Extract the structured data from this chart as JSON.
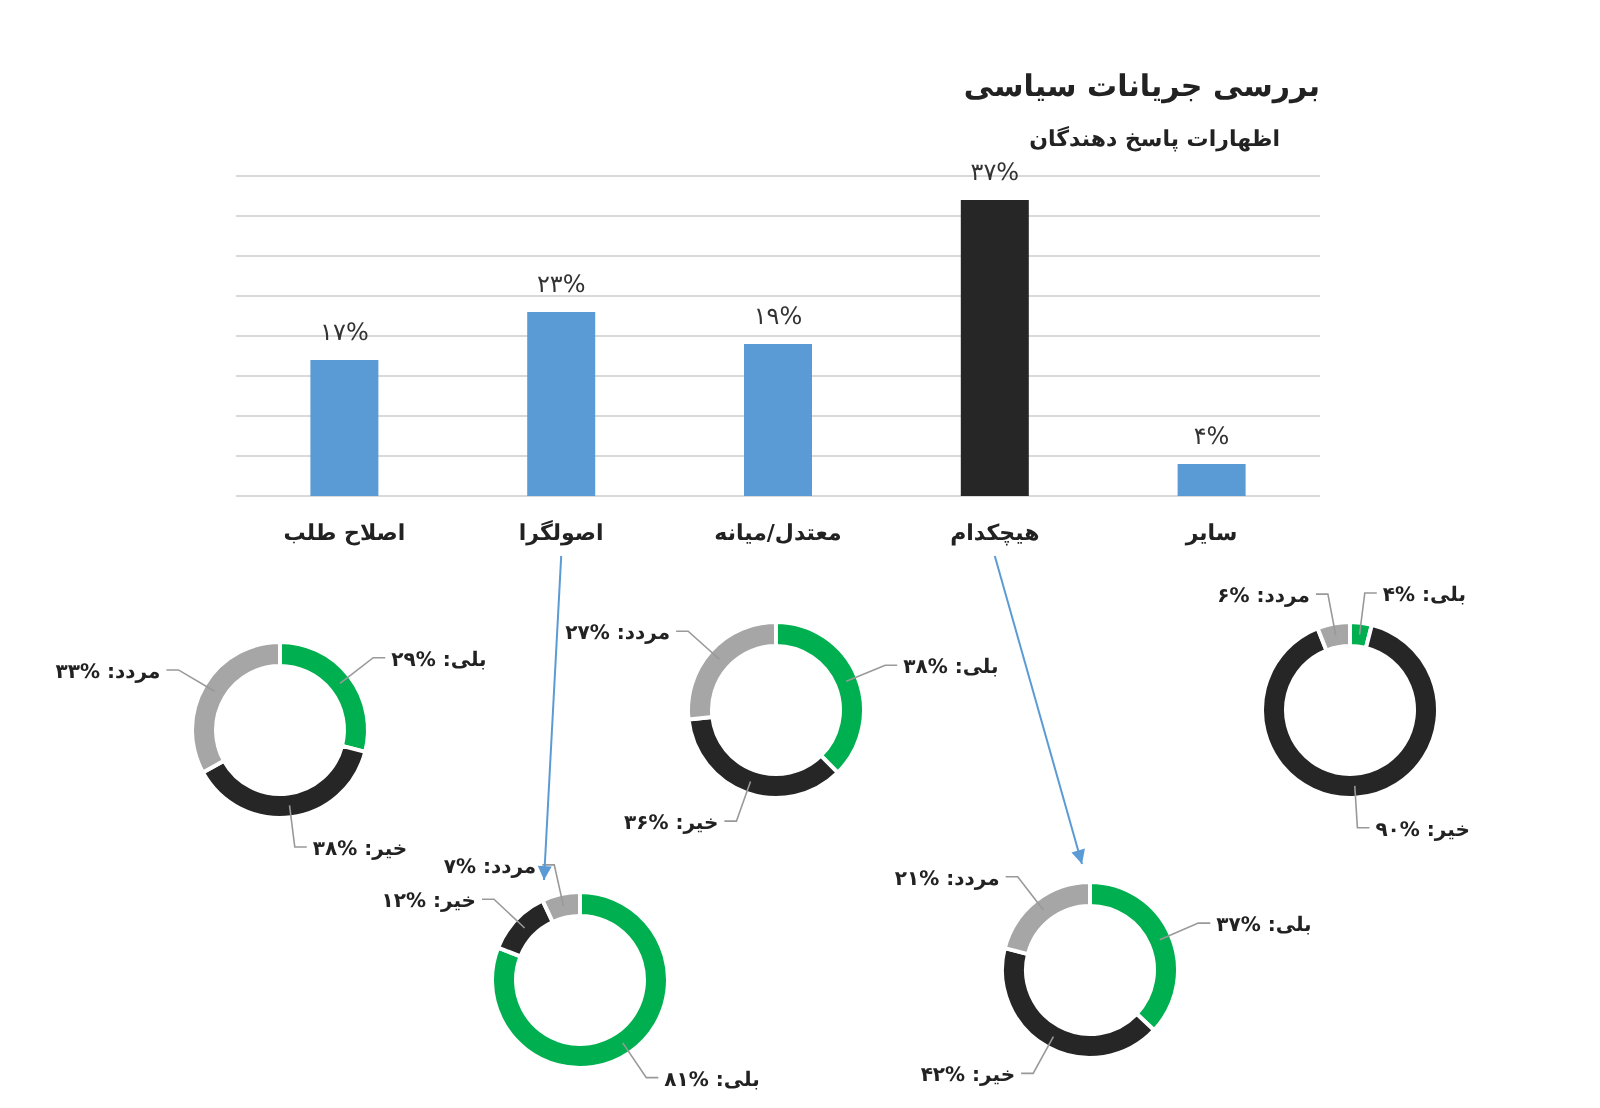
{
  "chart_data": [
    {
      "type": "bar",
      "title": "بررسی جریانات سیاسی",
      "subtitle": "اظهارات پاسخ دهندگان",
      "categories": [
        "اصلاح طلب",
        "اصولگرا",
        "معتدل/میانه",
        "هیچکدام",
        "سایر"
      ],
      "values": [
        17,
        23,
        19,
        37,
        4
      ],
      "colors": [
        "#5b9bd5",
        "#5b9bd5",
        "#5b9bd5",
        "#262626",
        "#5b9bd5"
      ],
      "value_labels": [
        "۱۷%",
        "۲۳%",
        "۱۹%",
        "۳۷%",
        "۴%"
      ],
      "ylim": [
        0,
        40
      ],
      "yticks": [
        {
          "value": 0,
          "label": null
        },
        {
          "value": 5,
          "label": null
        },
        {
          "value": 10,
          "label": null
        },
        {
          "value": 15,
          "label": null
        },
        {
          "value": 20,
          "label": null
        },
        {
          "value": 25,
          "label": null
        },
        {
          "value": 30,
          "label": null
        },
        {
          "value": 35,
          "label": null
        },
        {
          "value": 40,
          "label": null
        }
      ],
      "tick_labels": "x",
      "grid": "y"
    },
    {
      "type": "donut",
      "categories": [
        "بلی",
        "خیر",
        "مردد"
      ],
      "values": [
        29,
        38,
        33
      ],
      "colors": [
        "#00b050",
        "#262626",
        "#a6a6a6"
      ],
      "value_labels": [
        "%۲۹",
        "%۳۸",
        "%۳۳"
      ]
    },
    {
      "type": "donut",
      "categories": [
        "بلی",
        "خیر",
        "مردد"
      ],
      "values": [
        38,
        36,
        27
      ],
      "colors": [
        "#00b050",
        "#262626",
        "#a6a6a6"
      ],
      "value_labels": [
        "%۳۸",
        "%۳۶",
        "%۲۷"
      ]
    },
    {
      "type": "donut",
      "categories": [
        "بلی",
        "خیر",
        "مردد"
      ],
      "values": [
        4,
        90,
        6
      ],
      "colors": [
        "#00b050",
        "#262626",
        "#a6a6a6"
      ],
      "value_labels": [
        "%۴",
        "%۹۰",
        "%۶"
      ]
    },
    {
      "type": "donut",
      "categories": [
        "بلی",
        "خیر",
        "مردد"
      ],
      "values": [
        81,
        12,
        7
      ],
      "colors": [
        "#00b050",
        "#262626",
        "#a6a6a6"
      ],
      "value_labels": [
        "%۸۱",
        "%۱۲",
        "%۷"
      ]
    },
    {
      "type": "donut",
      "categories": [
        "بلی",
        "خیر",
        "مردد"
      ],
      "values": [
        37,
        42,
        21
      ],
      "colors": [
        "#00b050",
        "#262626",
        "#a6a6a6"
      ],
      "value_labels": [
        "%۳۷",
        "%۴۲",
        "%۲۱"
      ]
    }
  ]
}
